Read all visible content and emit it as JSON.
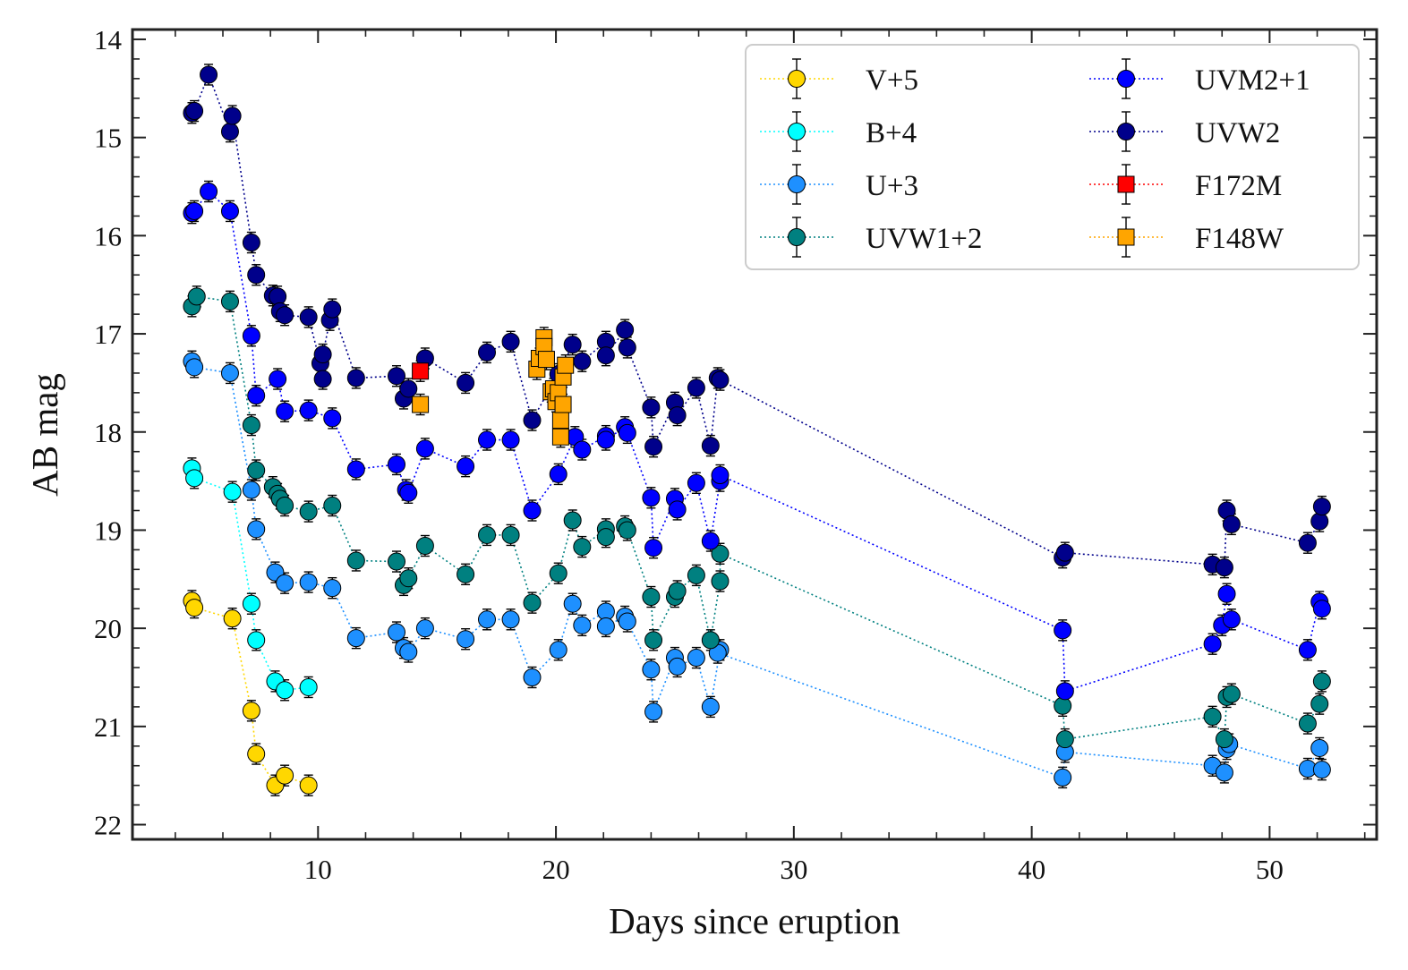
{
  "chart_data": {
    "type": "scatter",
    "title": "",
    "xlabel": "Days since eruption",
    "ylabel": "AB mag",
    "xlim": [
      2.2,
      54.5
    ],
    "ylim": [
      22.15,
      13.9
    ],
    "y_inverted": true,
    "grid": false,
    "legend_position": "top-right",
    "x_ticks": [
      10,
      20,
      30,
      40,
      50
    ],
    "x_tick_labels": [
      "10",
      "20",
      "30",
      "40",
      "50"
    ],
    "y_ticks": [
      14,
      15,
      16,
      17,
      18,
      19,
      20,
      21,
      22
    ],
    "y_tick_labels": [
      "14",
      "15",
      "16",
      "17",
      "18",
      "19",
      "20",
      "21",
      "22"
    ],
    "series": [
      {
        "name": "V+5",
        "color": "#ffd700",
        "marker": "circle",
        "line": true,
        "x": [
          4.7,
          4.8,
          6.4,
          7.2,
          7.4,
          8.2,
          8.6,
          9.6
        ],
        "y": [
          19.72,
          19.79,
          19.9,
          20.84,
          21.28,
          21.6,
          21.5,
          21.6
        ]
      },
      {
        "name": "B+4",
        "color": "#00ffff",
        "marker": "circle",
        "line": true,
        "x": [
          4.7,
          4.8,
          6.4,
          7.2,
          7.4,
          8.2,
          8.6,
          9.6
        ],
        "y": [
          18.37,
          18.47,
          18.61,
          19.75,
          20.12,
          20.54,
          20.63,
          20.6
        ]
      },
      {
        "name": "U+3",
        "color": "#1e90ff",
        "marker": "circle",
        "line": true,
        "x": [
          4.7,
          4.8,
          6.3,
          7.2,
          7.4,
          8.2,
          8.6,
          9.6,
          10.6,
          11.6,
          13.3,
          13.6,
          13.8,
          14.5,
          16.2,
          17.1,
          18.1,
          19.0,
          20.1,
          20.7,
          21.1,
          22.1,
          22.1,
          22.9,
          23.0,
          24.0,
          24.1,
          25.0,
          25.1,
          25.9,
          26.5,
          26.9,
          26.8,
          41.3,
          41.4,
          47.6,
          48.1,
          48.2,
          48.3,
          51.6,
          52.1,
          52.2
        ],
        "y": [
          17.28,
          17.34,
          17.4,
          18.59,
          18.99,
          19.43,
          19.54,
          19.53,
          19.59,
          20.1,
          20.04,
          20.2,
          20.24,
          20.0,
          20.11,
          19.91,
          19.91,
          20.5,
          20.22,
          19.75,
          19.97,
          19.83,
          19.98,
          19.88,
          19.93,
          20.42,
          20.85,
          20.3,
          20.39,
          20.3,
          20.8,
          20.22,
          20.25,
          21.52,
          21.26,
          21.4,
          21.47,
          21.23,
          21.18,
          21.43,
          21.22,
          21.44
        ]
      },
      {
        "name": "UVW1+2",
        "color": "#008080",
        "marker": "circle",
        "line": true,
        "x": [
          4.7,
          4.9,
          6.3,
          7.2,
          7.4,
          8.1,
          8.3,
          8.4,
          8.6,
          9.6,
          10.6,
          11.6,
          13.3,
          13.6,
          13.8,
          14.5,
          16.2,
          17.1,
          18.1,
          19.0,
          20.1,
          20.7,
          21.1,
          22.1,
          22.1,
          22.9,
          23.0,
          24.0,
          24.1,
          25.0,
          25.1,
          25.9,
          26.5,
          26.9,
          26.9,
          41.3,
          41.4,
          47.6,
          48.1,
          48.2,
          48.4,
          51.6,
          52.1,
          52.2
        ],
        "y": [
          16.72,
          16.62,
          16.67,
          17.93,
          18.39,
          18.56,
          18.63,
          18.68,
          18.75,
          18.81,
          18.75,
          19.31,
          19.32,
          19.56,
          19.49,
          19.16,
          19.45,
          19.05,
          19.05,
          19.74,
          19.44,
          18.9,
          19.17,
          18.99,
          19.07,
          18.96,
          19.0,
          19.68,
          20.12,
          19.68,
          19.62,
          19.46,
          20.12,
          19.52,
          19.24,
          20.79,
          21.13,
          20.9,
          21.13,
          20.7,
          20.67,
          20.97,
          20.77,
          20.54
        ]
      },
      {
        "name": "UVM2+1",
        "color": "#0000ff",
        "marker": "circle",
        "line": true,
        "x": [
          4.7,
          4.8,
          5.4,
          6.3,
          7.2,
          7.4,
          8.3,
          8.6,
          9.6,
          10.6,
          11.6,
          13.3,
          13.7,
          13.8,
          14.5,
          16.2,
          17.1,
          18.1,
          19.0,
          20.1,
          20.8,
          21.1,
          22.1,
          22.1,
          22.9,
          23.0,
          24.0,
          24.1,
          25.0,
          25.1,
          25.9,
          26.5,
          26.9,
          26.9,
          41.3,
          41.4,
          47.6,
          48.0,
          48.2,
          48.4,
          51.6,
          52.1,
          52.2
        ],
        "y": [
          15.77,
          15.75,
          15.55,
          15.75,
          17.02,
          17.63,
          17.46,
          17.79,
          17.78,
          17.86,
          18.38,
          18.33,
          18.59,
          18.62,
          18.17,
          18.35,
          18.08,
          18.08,
          18.8,
          18.43,
          18.05,
          18.18,
          18.04,
          18.08,
          17.95,
          18.01,
          18.67,
          19.18,
          18.68,
          18.79,
          18.52,
          19.11,
          18.5,
          18.44,
          20.02,
          20.64,
          20.16,
          19.97,
          19.65,
          19.91,
          20.22,
          19.73,
          19.8
        ]
      },
      {
        "name": "UVW2",
        "color": "#00008b",
        "marker": "circle",
        "line": true,
        "x": [
          4.7,
          4.8,
          5.4,
          6.3,
          6.4,
          7.2,
          7.4,
          8.1,
          8.3,
          8.4,
          8.6,
          9.6,
          10.1,
          10.2,
          10.2,
          10.5,
          10.6,
          11.6,
          13.3,
          13.6,
          13.8,
          14.5,
          16.2,
          17.1,
          18.1,
          19.0,
          20.1,
          20.7,
          21.1,
          22.1,
          22.1,
          22.9,
          23.0,
          24.0,
          24.1,
          25.0,
          25.1,
          25.9,
          26.5,
          26.8,
          26.9,
          41.3,
          41.4,
          47.6,
          48.1,
          48.2,
          48.4,
          51.6,
          52.1,
          52.2
        ],
        "y": [
          14.75,
          14.73,
          14.36,
          14.94,
          14.78,
          16.07,
          16.4,
          16.61,
          16.62,
          16.77,
          16.81,
          16.83,
          17.3,
          17.46,
          17.21,
          16.86,
          16.75,
          17.45,
          17.43,
          17.66,
          17.56,
          17.25,
          17.5,
          17.19,
          17.08,
          17.88,
          17.41,
          17.11,
          17.28,
          17.08,
          17.22,
          16.96,
          17.14,
          17.75,
          18.15,
          17.7,
          17.83,
          17.55,
          18.14,
          17.45,
          17.47,
          19.28,
          19.23,
          19.35,
          19.38,
          18.8,
          18.94,
          19.13,
          18.91,
          18.76
        ]
      },
      {
        "name": "F172M",
        "color": "#ff0000",
        "marker": "square",
        "line": false,
        "x": [
          14.3
        ],
        "y": [
          17.38
        ]
      },
      {
        "name": "F148W",
        "color": "#ffa500",
        "marker": "square",
        "line": false,
        "x": [
          14.3,
          19.2,
          19.3,
          19.5,
          19.5,
          19.6,
          19.8,
          19.9,
          20.0,
          20.1,
          20.2,
          20.2,
          20.3,
          20.3,
          20.4
        ],
        "y": [
          17.72,
          17.36,
          17.25,
          17.04,
          17.13,
          17.26,
          17.59,
          17.56,
          17.69,
          17.6,
          17.88,
          18.05,
          17.44,
          17.72,
          17.32
        ]
      }
    ]
  }
}
